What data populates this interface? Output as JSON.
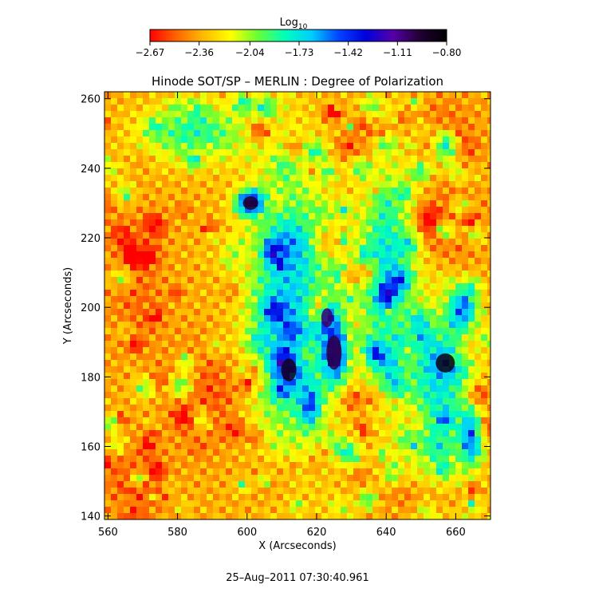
{
  "chart_data": {
    "type": "heatmap",
    "title": "Hinode SOT/SP – MERLIN : Degree of Polarization",
    "xlabel": "X (Arcseconds)",
    "ylabel": "Y (Arcseconds)",
    "xlim": [
      559,
      670
    ],
    "ylim": [
      139,
      262
    ],
    "x_ticks": [
      560,
      580,
      600,
      620,
      640,
      660
    ],
    "y_ticks": [
      140,
      160,
      180,
      200,
      220,
      240,
      260
    ],
    "colorbar": {
      "title_main": "Log",
      "title_sub": "10",
      "range": [
        -2.67,
        -0.8
      ],
      "tick_values": [
        -2.67,
        -2.36,
        -2.04,
        -1.73,
        -1.42,
        -1.11,
        -0.8
      ],
      "tick_labels": [
        "−2.67",
        "−2.36",
        "−2.04",
        "−1.73",
        "−1.42",
        "−1.11",
        "−0.80"
      ],
      "colors": [
        "#ff0000",
        "#ff6600",
        "#ffbb00",
        "#ffff00",
        "#66ff33",
        "#00ffbb",
        "#00ccff",
        "#0044ff",
        "#0000dd",
        "#5500aa",
        "#220033",
        "#000000"
      ]
    },
    "features": [
      {
        "kind": "pore",
        "x": 601,
        "y": 230,
        "rx": 4,
        "ry": 3.5,
        "value": -0.95
      },
      {
        "kind": "pore",
        "x": 612,
        "y": 182,
        "rx": 4,
        "ry": 6,
        "value": -0.9
      },
      {
        "kind": "pore",
        "x": 625,
        "y": 187,
        "rx": 4,
        "ry": 9,
        "value": -1.0
      },
      {
        "kind": "pore",
        "x": 623,
        "y": 197,
        "rx": 3,
        "ry": 5,
        "value": -1.05
      },
      {
        "kind": "pore",
        "x": 657,
        "y": 184,
        "rx": 5,
        "ry": 5,
        "value": -0.85
      },
      {
        "kind": "strong-field",
        "x": 618,
        "y": 172,
        "rx": 3,
        "ry": 6,
        "value": -1.2
      },
      {
        "kind": "strong-field",
        "x": 640,
        "y": 183,
        "rx": 4,
        "ry": 5,
        "value": -1.3
      },
      {
        "kind": "strong-field",
        "x": 612,
        "y": 218,
        "rx": 5,
        "ry": 5,
        "value": -1.4
      },
      {
        "kind": "strong-field",
        "x": 664,
        "y": 163,
        "rx": 3,
        "ry": 8,
        "value": -1.3
      },
      {
        "kind": "strong-field",
        "x": 662,
        "y": 200,
        "rx": 4,
        "ry": 6,
        "value": -1.35
      },
      {
        "kind": "network",
        "x": 612,
        "y": 200,
        "rx": 12,
        "ry": 40,
        "value": -1.6
      },
      {
        "kind": "network",
        "x": 640,
        "y": 210,
        "rx": 8,
        "ry": 30,
        "value": -1.65
      },
      {
        "kind": "network",
        "x": 585,
        "y": 250,
        "rx": 15,
        "ry": 8,
        "value": -1.8
      },
      {
        "kind": "network",
        "x": 655,
        "y": 175,
        "rx": 10,
        "ry": 25,
        "value": -1.7
      },
      {
        "kind": "weak-field",
        "x": 568,
        "y": 205,
        "rx": 8,
        "ry": 20,
        "value": -2.5
      },
      {
        "kind": "weak-field",
        "x": 588,
        "y": 175,
        "rx": 10,
        "ry": 15,
        "value": -2.55
      },
      {
        "kind": "weak-field",
        "x": 568,
        "y": 150,
        "rx": 8,
        "ry": 10,
        "value": -2.6
      },
      {
        "kind": "weak-field",
        "x": 660,
        "y": 225,
        "rx": 8,
        "ry": 12,
        "value": -2.55
      },
      {
        "kind": "weak-field",
        "x": 655,
        "y": 252,
        "rx": 10,
        "ry": 8,
        "value": -2.5
      },
      {
        "kind": "weak-field",
        "x": 605,
        "y": 150,
        "rx": 10,
        "ry": 8,
        "value": -2.4
      },
      {
        "kind": "weak-field",
        "x": 645,
        "y": 145,
        "rx": 10,
        "ry": 6,
        "value": -2.45
      },
      {
        "kind": "weak-field",
        "x": 630,
        "y": 245,
        "rx": 8,
        "ry": 10,
        "value": -2.35
      }
    ]
  },
  "timestamp": "25–Aug–2011 07:30:40.961"
}
